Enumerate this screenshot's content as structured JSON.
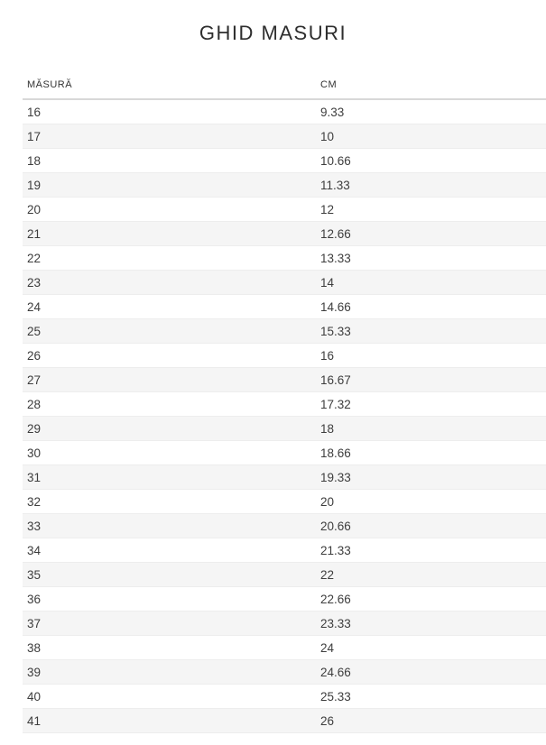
{
  "page": {
    "title": "GHID MASURI"
  },
  "table": {
    "headers": [
      {
        "label": "MĂSURĂ"
      },
      {
        "label": "CM"
      }
    ],
    "rows": [
      {
        "size": "16",
        "cm": "9.33"
      },
      {
        "size": "17",
        "cm": "10"
      },
      {
        "size": "18",
        "cm": "10.66"
      },
      {
        "size": "19",
        "cm": "11.33"
      },
      {
        "size": "20",
        "cm": "12"
      },
      {
        "size": "21",
        "cm": "12.66"
      },
      {
        "size": "22",
        "cm": "13.33"
      },
      {
        "size": "23",
        "cm": "14"
      },
      {
        "size": "24",
        "cm": "14.66"
      },
      {
        "size": "25",
        "cm": "15.33"
      },
      {
        "size": "26",
        "cm": "16"
      },
      {
        "size": "27",
        "cm": "16.67"
      },
      {
        "size": "28",
        "cm": "17.32"
      },
      {
        "size": "29",
        "cm": "18"
      },
      {
        "size": "30",
        "cm": "18.66"
      },
      {
        "size": "31",
        "cm": "19.33"
      },
      {
        "size": "32",
        "cm": "20"
      },
      {
        "size": "33",
        "cm": "20.66"
      },
      {
        "size": "34",
        "cm": "21.33"
      },
      {
        "size": "35",
        "cm": "22"
      },
      {
        "size": "36",
        "cm": "22.66"
      },
      {
        "size": "37",
        "cm": "23.33"
      },
      {
        "size": "38",
        "cm": "24"
      },
      {
        "size": "39",
        "cm": "24.66"
      },
      {
        "size": "40",
        "cm": "25.33"
      },
      {
        "size": "41",
        "cm": "26"
      }
    ]
  },
  "colors": {
    "stripe": "#f5f5f5",
    "header_border": "#d8d8d8",
    "row_border": "#ededed",
    "text": "#3d3d3d",
    "title_text": "#2e2e2e"
  }
}
